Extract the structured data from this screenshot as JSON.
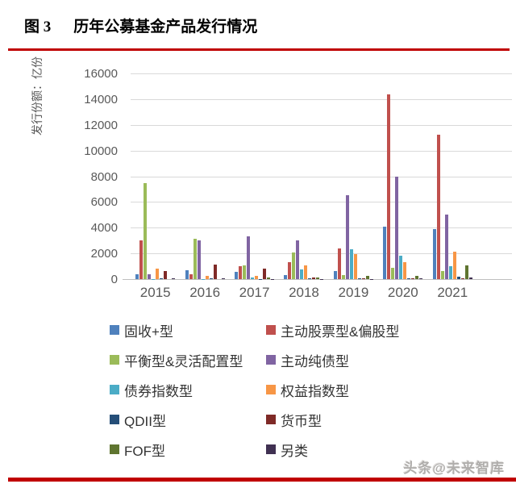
{
  "page": {
    "title_prefix": "图 3",
    "title_text": "历年公募基金产品发行情况",
    "watermark": "头条@未来智库",
    "accent_color": "#c00000"
  },
  "chart_data": {
    "type": "bar",
    "title": "历年公募基金产品发行情况",
    "xlabel": "",
    "ylabel": "发行份额：亿份",
    "ylim": [
      0,
      16000
    ],
    "yticks": [
      0,
      2000,
      4000,
      6000,
      8000,
      10000,
      12000,
      14000,
      16000
    ],
    "grid": true,
    "legend_position": "bottom",
    "categories": [
      "2015",
      "2016",
      "2017",
      "2018",
      "2019",
      "2020",
      "2021"
    ],
    "series": [
      {
        "name": "固收+型",
        "color": "#4f81bd",
        "values": [
          350,
          700,
          550,
          300,
          600,
          4100,
          3900
        ]
      },
      {
        "name": "主动股票型&偏股型",
        "color": "#c0504d",
        "values": [
          3000,
          350,
          1000,
          1350,
          2400,
          14400,
          11300
        ]
      },
      {
        "name": "平衡型&灵活配置型",
        "color": "#9bbb59",
        "values": [
          7500,
          3150,
          1100,
          2100,
          300,
          900,
          650
        ]
      },
      {
        "name": "主动纯债型",
        "color": "#8064a2",
        "values": [
          350,
          3000,
          3350,
          3050,
          6550,
          8000,
          5050
        ]
      },
      {
        "name": "债券指数型",
        "color": "#4bacc6",
        "values": [
          30,
          30,
          130,
          750,
          2350,
          1800,
          1000
        ]
      },
      {
        "name": "权益指数型",
        "color": "#f79646",
        "values": [
          800,
          280,
          280,
          1100,
          1950,
          1350,
          2150
        ]
      },
      {
        "name": "QDII型",
        "color": "#254e78",
        "values": [
          60,
          40,
          30,
          60,
          60,
          90,
          160
        ]
      },
      {
        "name": "货币型",
        "color": "#7f2a27",
        "values": [
          600,
          1150,
          850,
          150,
          40,
          60,
          50
        ]
      },
      {
        "name": "FOF型",
        "color": "#5f7530",
        "values": [
          0,
          0,
          150,
          120,
          280,
          280,
          1050
        ]
      },
      {
        "name": "另类",
        "color": "#403152",
        "values": [
          40,
          40,
          30,
          30,
          30,
          60,
          100
        ]
      }
    ]
  }
}
